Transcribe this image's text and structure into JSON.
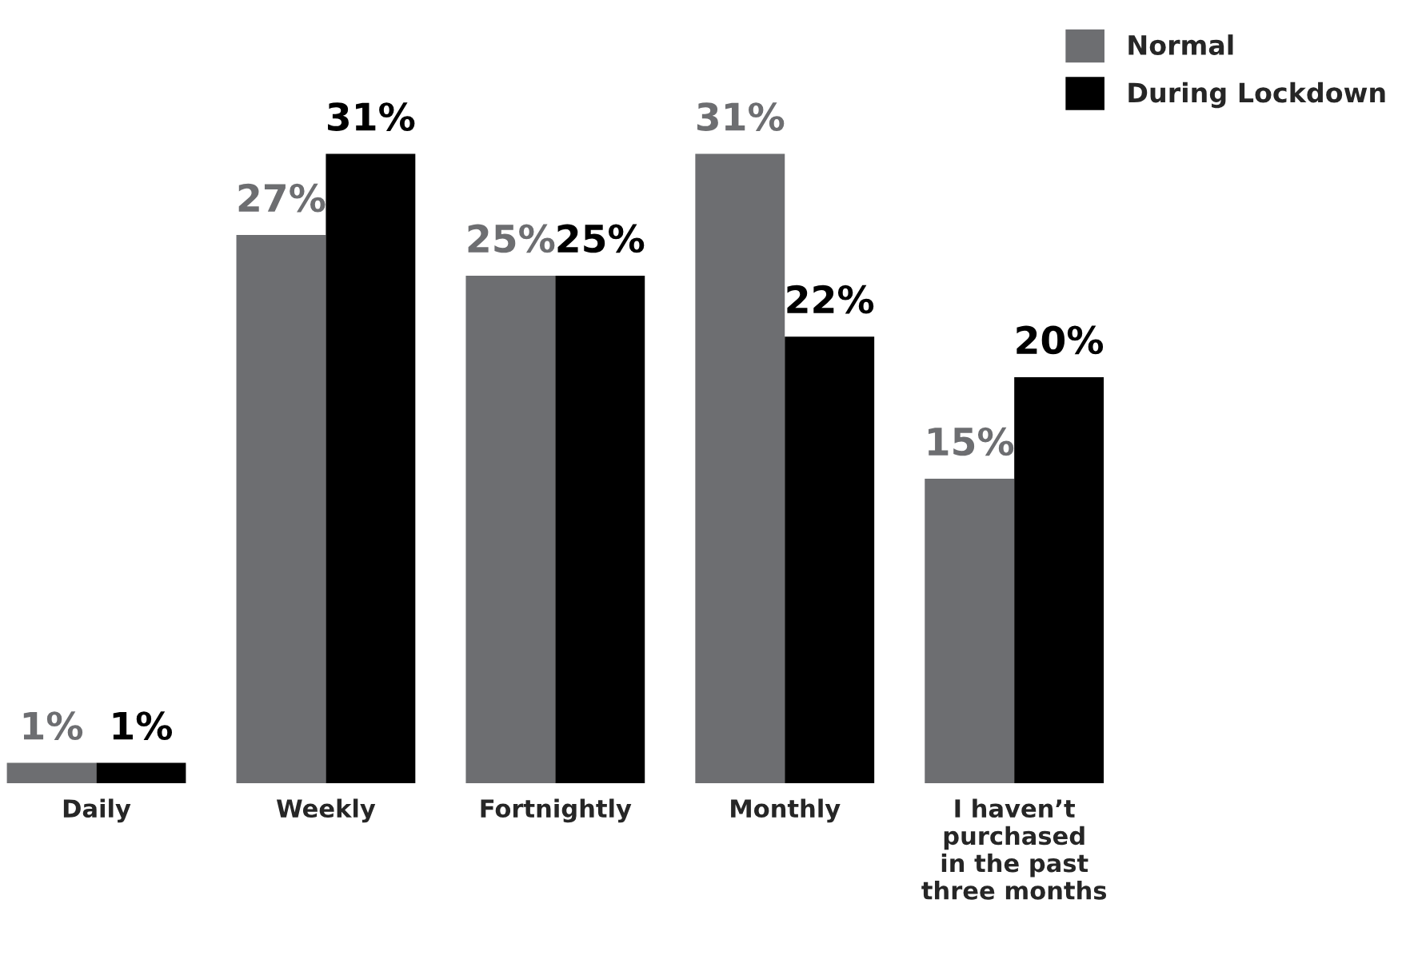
{
  "chart_data": {
    "type": "bar",
    "categories": [
      "Daily",
      "Weekly",
      "Fortnightly",
      "Monthly",
      "I haven’t\npurchased\nin the past\nthree months"
    ],
    "series": [
      {
        "name": "Normal",
        "color": "#6d6e71",
        "values": [
          1,
          27,
          25,
          31,
          15
        ],
        "value_labels": [
          "1%",
          "27%",
          "25%",
          "31%",
          "15%"
        ]
      },
      {
        "name": "During Lockdown",
        "color": "#000000",
        "values": [
          1,
          31,
          25,
          22,
          20
        ],
        "value_labels": [
          "1%",
          "31%",
          "25%",
          "22%",
          "20%"
        ]
      }
    ],
    "legend": "top right"
  }
}
